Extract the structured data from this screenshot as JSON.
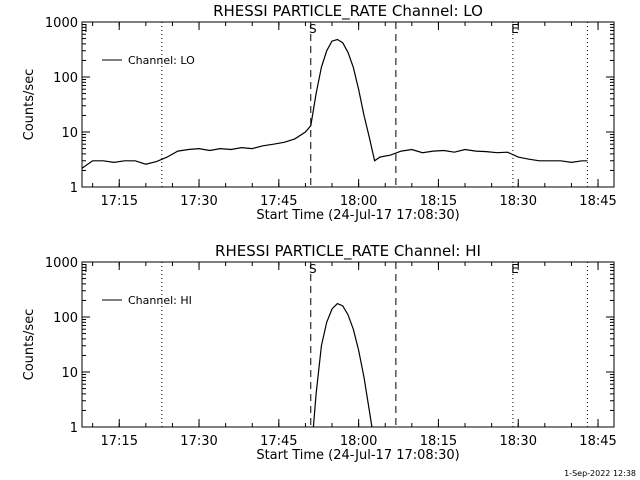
{
  "footer": {
    "date_stamp": "1-Sep-2022 12:38"
  },
  "chart_data": [
    {
      "type": "line",
      "title": "RHESSI PARTICLE_RATE Channel: LO",
      "xlabel": "Start Time (24-Jul-17 17:08:30)",
      "ylabel": "Counts/sec",
      "yscale": "log",
      "ylim": [
        1,
        1000
      ],
      "xlim": [
        "17:08:30",
        "18:48:00"
      ],
      "x_ticks": [
        "17:15",
        "17:30",
        "17:45",
        "18:00",
        "18:15",
        "18:30",
        "18:45"
      ],
      "y_ticks": [
        "1",
        "10",
        "100",
        "1000"
      ],
      "legend": {
        "placement": "top-left",
        "entries": [
          "Channel: LO"
        ]
      },
      "annotations": [
        {
          "label": "S",
          "time": "17:51",
          "style": "dashed"
        },
        {
          "label": "",
          "time": "18:07",
          "style": "dashed"
        },
        {
          "label": "E",
          "time": "18:29",
          "style": "dotted"
        },
        {
          "label": "",
          "time": "17:23",
          "style": "dotted"
        },
        {
          "label": "",
          "time": "18:43",
          "style": "dotted"
        }
      ],
      "series": [
        {
          "name": "Channel: LO",
          "x": [
            "17:08:30",
            "17:10",
            "17:12",
            "17:14",
            "17:16",
            "17:18",
            "17:20",
            "17:22",
            "17:24",
            "17:26",
            "17:28",
            "17:30",
            "17:32",
            "17:34",
            "17:36",
            "17:38",
            "17:40",
            "17:42",
            "17:44",
            "17:46",
            "17:48",
            "17:50",
            "17:51",
            "17:52",
            "17:53",
            "17:54",
            "17:55",
            "17:56",
            "17:57",
            "17:58",
            "17:59",
            "18:00",
            "18:01",
            "18:02",
            "18:03",
            "18:04",
            "18:06",
            "18:08",
            "18:10",
            "18:12",
            "18:14",
            "18:16",
            "18:18",
            "18:20",
            "18:22",
            "18:24",
            "18:26",
            "18:28",
            "18:30",
            "18:32",
            "18:34",
            "18:36",
            "18:38",
            "18:40",
            "18:42",
            "18:43"
          ],
          "values": [
            2.2,
            3.0,
            3.0,
            2.8,
            3.0,
            3.0,
            2.6,
            2.9,
            3.5,
            4.5,
            4.8,
            5.0,
            4.6,
            5.0,
            4.8,
            5.2,
            5.0,
            5.6,
            6.0,
            6.5,
            7.5,
            10,
            13,
            50,
            150,
            300,
            450,
            480,
            420,
            280,
            150,
            60,
            20,
            8,
            3.0,
            3.5,
            3.8,
            4.5,
            4.8,
            4.2,
            4.5,
            4.6,
            4.3,
            4.8,
            4.5,
            4.4,
            4.2,
            4.3,
            3.5,
            3.2,
            3.0,
            3.0,
            3.0,
            2.8,
            3.0,
            3.0
          ]
        }
      ]
    },
    {
      "type": "line",
      "title": "RHESSI PARTICLE_RATE Channel: HI",
      "xlabel": "Start Time (24-Jul-17 17:08:30)",
      "ylabel": "Counts/sec",
      "yscale": "log",
      "ylim": [
        1,
        1000
      ],
      "xlim": [
        "17:08:30",
        "18:48:00"
      ],
      "x_ticks": [
        "17:15",
        "17:30",
        "17:45",
        "18:00",
        "18:15",
        "18:30",
        "18:45"
      ],
      "y_ticks": [
        "1",
        "10",
        "100",
        "1000"
      ],
      "legend": {
        "placement": "top-left",
        "entries": [
          "Channel: HI"
        ]
      },
      "annotations": [
        {
          "label": "S",
          "time": "17:51",
          "style": "dashed"
        },
        {
          "label": "",
          "time": "18:07",
          "style": "dashed"
        },
        {
          "label": "E",
          "time": "18:29",
          "style": "dotted"
        },
        {
          "label": "",
          "time": "17:23",
          "style": "dotted"
        },
        {
          "label": "",
          "time": "18:43",
          "style": "dotted"
        }
      ],
      "series": [
        {
          "name": "Channel: HI",
          "x": [
            "17:51.5",
            "17:52",
            "17:53",
            "17:54",
            "17:55",
            "17:56",
            "17:57",
            "17:58",
            "17:59",
            "18:00",
            "18:01",
            "18:02",
            "18:02.5"
          ],
          "values": [
            1,
            4,
            30,
            80,
            140,
            175,
            160,
            110,
            60,
            25,
            8,
            2,
            1
          ]
        }
      ]
    }
  ]
}
